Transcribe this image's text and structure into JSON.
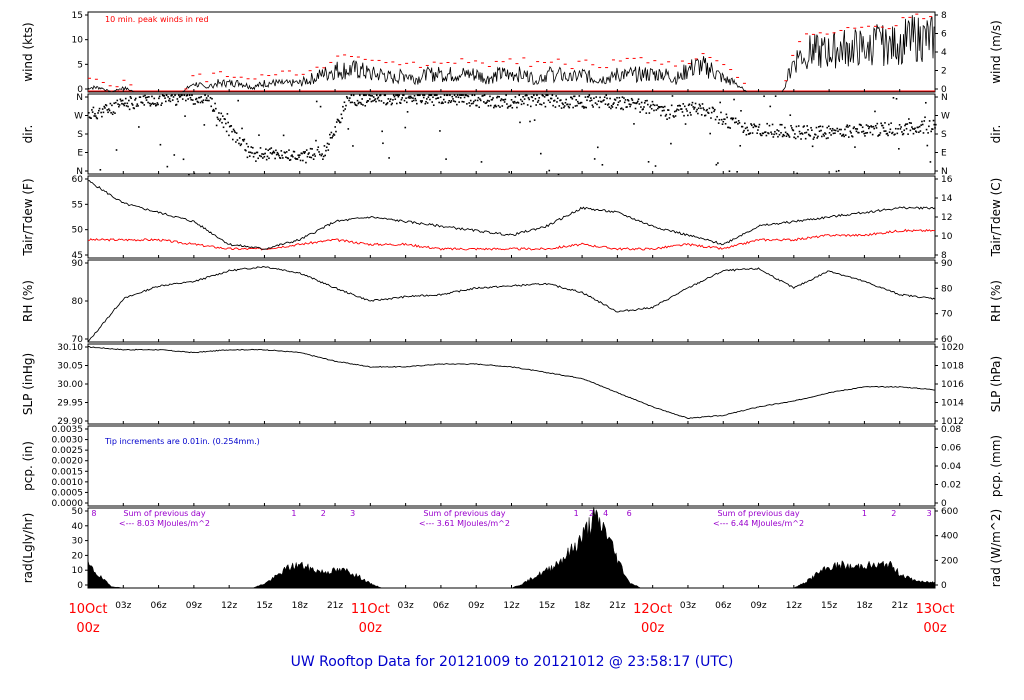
{
  "footer": "UW Rooftop Data for 20121009  to  20121012 @ 23:58:17  (UTC)",
  "colors": {
    "red": "#ff0000",
    "blue": "#0000cc",
    "purple": "#9900cc",
    "black": "#000000"
  },
  "chart_data": {
    "type": "line",
    "x_axis": {
      "start": "2012-10-10T00:00Z",
      "end": "2012-10-13T00:00Z",
      "hour_labels": [
        "03z",
        "06z",
        "09z",
        "12z",
        "15z",
        "18z",
        "21z",
        "03z",
        "06z",
        "09z",
        "12z",
        "15z",
        "18z",
        "21z",
        "03z",
        "06z",
        "09z",
        "12z",
        "15z",
        "18z",
        "21z"
      ],
      "date_labels": [
        {
          "date": "10Oct",
          "hour": "00z"
        },
        {
          "date": "11Oct",
          "hour": "00z"
        },
        {
          "date": "12Oct",
          "hour": "00z"
        },
        {
          "date": "13Oct",
          "hour": "00z"
        }
      ]
    },
    "panels": [
      {
        "id": "wind",
        "ylabel_left": "wind (kts)",
        "ylabel_right": "wind (m/s)",
        "ylim": [
          0,
          18
        ],
        "left_ticks": [
          "0",
          "5",
          "10",
          "15"
        ],
        "right_ticks": [
          "0",
          "2",
          "4",
          "6",
          "8"
        ],
        "annotation": "10 min. peak winds in red",
        "hours": [
          0,
          1,
          2,
          3,
          4,
          5,
          6,
          7,
          8,
          9,
          10,
          11,
          12,
          13,
          14,
          15,
          16,
          17,
          18,
          19,
          20,
          21,
          22,
          23,
          24,
          25,
          26,
          27,
          28,
          29,
          30,
          31,
          32,
          33,
          34,
          35,
          36,
          37,
          38,
          39,
          40,
          41,
          42,
          43,
          44,
          45,
          46,
          47,
          48,
          49,
          50,
          51,
          52,
          53,
          54,
          55,
          56,
          57,
          58,
          59,
          60,
          61,
          62,
          63,
          64,
          65,
          66,
          67,
          68,
          69,
          70,
          71,
          72
        ],
        "mean_kts": [
          1,
          1,
          0,
          1,
          0,
          0,
          0,
          0,
          0,
          2,
          1,
          2,
          2,
          2,
          1,
          2,
          2,
          2,
          2,
          3,
          4,
          5,
          5,
          5,
          4,
          4,
          3,
          4,
          3,
          4,
          4,
          4,
          4,
          4,
          3,
          4,
          4,
          4,
          3,
          4,
          4,
          3,
          4,
          3,
          3,
          4,
          4,
          4,
          4,
          4,
          3,
          5,
          6,
          5,
          3,
          2,
          0,
          0,
          0,
          0,
          7,
          9,
          9,
          9,
          10,
          10,
          10,
          11,
          10,
          11,
          12,
          12,
          12
        ],
        "peak_kts": [
          3,
          3,
          1,
          3,
          0,
          0,
          0,
          0,
          0,
          4,
          3,
          4,
          4,
          4,
          3,
          4,
          4,
          4,
          4,
          5,
          6,
          8,
          8,
          8,
          7,
          7,
          6,
          7,
          6,
          7,
          7,
          7,
          7,
          7,
          6,
          7,
          7,
          7,
          6,
          7,
          7,
          6,
          7,
          6,
          6,
          7,
          7,
          7,
          7,
          7,
          6,
          7,
          8,
          8,
          6,
          4,
          0,
          0,
          0,
          0,
          11,
          13,
          13,
          13,
          14,
          14,
          14,
          15,
          15,
          16,
          17,
          17,
          16
        ]
      },
      {
        "id": "dir",
        "ylabel_left": "dir.",
        "ylabel_right": "dir.",
        "ylim": [
          0,
          360
        ],
        "left_ticks": [
          "N",
          "E",
          "S",
          "W",
          "N"
        ],
        "right_ticks": [
          "N",
          "E",
          "S",
          "W",
          "N"
        ],
        "hours": [
          0,
          2,
          4,
          6,
          8,
          10,
          12,
          14,
          16,
          18,
          20,
          22,
          24,
          26,
          28,
          30,
          32,
          34,
          36,
          38,
          40,
          42,
          44,
          46,
          48,
          50,
          52,
          54,
          56,
          58,
          60,
          62,
          64,
          66,
          68,
          70,
          72
        ],
        "deg": [
          270,
          300,
          330,
          340,
          345,
          350,
          200,
          90,
          95,
          80,
          100,
          330,
          340,
          345,
          350,
          345,
          340,
          330,
          330,
          340,
          330,
          330,
          330,
          320,
          300,
          290,
          300,
          250,
          200,
          200,
          190,
          190,
          195,
          200,
          205,
          210,
          215
        ]
      },
      {
        "id": "temp",
        "ylabel_left": "Tair/Tdew (F)",
        "ylabel_right": "Tair/Tdew (C)",
        "ylim": [
          45,
          63
        ],
        "left_ticks": [
          "45",
          "50",
          "55",
          "60"
        ],
        "right_ticks": [
          "8",
          "10",
          "12",
          "14",
          "16"
        ],
        "hours": [
          0,
          3,
          6,
          9,
          12,
          15,
          18,
          21,
          24,
          27,
          30,
          33,
          36,
          39,
          42,
          45,
          48,
          51,
          54,
          57,
          60,
          63,
          66,
          69,
          72
        ],
        "tair_f": [
          62,
          57,
          55,
          53,
          48,
          47,
          49,
          53,
          54,
          53,
          52,
          51,
          50,
          52,
          56,
          55,
          52,
          50,
          48,
          52,
          53,
          54,
          55,
          56,
          56
        ],
        "tdew_f": [
          49,
          49,
          49,
          48,
          47,
          47,
          48,
          49,
          48,
          48,
          47,
          47,
          47,
          47,
          48,
          47,
          47,
          48,
          47,
          49,
          49,
          50,
          50,
          51,
          51
        ]
      },
      {
        "id": "rh",
        "ylabel_left": "RH (%)",
        "ylabel_right": "RH (%)",
        "ylim": [
          60,
          98
        ],
        "left_ticks": [
          "70",
          "80",
          "90"
        ],
        "right_ticks": [
          "60",
          "70",
          "80",
          "90"
        ],
        "hours": [
          0,
          3,
          6,
          9,
          12,
          15,
          18,
          21,
          24,
          27,
          30,
          33,
          36,
          39,
          42,
          45,
          48,
          51,
          54,
          57,
          60,
          63,
          66,
          69,
          72
        ],
        "rh_pct": [
          60,
          80,
          86,
          88,
          93,
          95,
          92,
          85,
          79,
          81,
          82,
          85,
          86,
          87,
          83,
          74,
          76,
          85,
          93,
          94,
          85,
          93,
          88,
          82,
          80
        ]
      },
      {
        "id": "slp",
        "ylabel_left": "SLP (inHg)",
        "ylabel_right": "SLP (hPa)",
        "ylim": [
          29.85,
          30.13
        ],
        "left_ticks": [
          "29.90",
          "29.95",
          "30.00",
          "30.05",
          "30.10"
        ],
        "right_ticks": [
          "1012",
          "1014",
          "1016",
          "1018",
          "1020"
        ],
        "hours": [
          0,
          3,
          6,
          9,
          12,
          15,
          18,
          21,
          24,
          27,
          30,
          33,
          36,
          39,
          42,
          45,
          48,
          51,
          54,
          57,
          60,
          63,
          66,
          69,
          72
        ],
        "slp_inhg": [
          30.12,
          30.11,
          30.11,
          30.1,
          30.11,
          30.11,
          30.1,
          30.07,
          30.05,
          30.05,
          30.06,
          30.06,
          30.05,
          30.03,
          30.01,
          29.96,
          29.91,
          29.87,
          29.88,
          29.91,
          29.93,
          29.96,
          29.98,
          29.98,
          29.97
        ]
      },
      {
        "id": "pcp",
        "ylabel_left": "pcp. (in)",
        "ylabel_right": "pcp. (mm)",
        "ylim": [
          0,
          0.0035
        ],
        "left_ticks": [
          "0.0000",
          "0.0005",
          "0.0010",
          "0.0015",
          "0.0020",
          "0.0025",
          "0.0030",
          "0.0035"
        ],
        "right_ticks": [
          "0",
          "0.02",
          "0.04",
          "0.06",
          "0.08"
        ],
        "annotation": "Tip increments are 0.01in. (0.254mm.)",
        "hours": [
          0,
          72
        ],
        "pcp_in": [
          0,
          0
        ]
      },
      {
        "id": "rad",
        "ylabel_left": "rad(Lgly/hr)",
        "ylabel_right": "rad (W/m^2)",
        "ylim": [
          0,
          55
        ],
        "left_ticks": [
          "0",
          "10",
          "20",
          "30",
          "40",
          "50"
        ],
        "right_ticks": [
          "0",
          "200",
          "400",
          "600"
        ],
        "hours": [
          0,
          1,
          2,
          3,
          14,
          15,
          16,
          17,
          18,
          19,
          20,
          21,
          22,
          23,
          24,
          25,
          36,
          37,
          38,
          39,
          40,
          41,
          42,
          43,
          44,
          45,
          46,
          47,
          48,
          49,
          60,
          61,
          62,
          63,
          64,
          65,
          66,
          67,
          68,
          69,
          70,
          71,
          72
        ],
        "rad_lgly": [
          16,
          8,
          1,
          0,
          0,
          3,
          8,
          14,
          16,
          13,
          11,
          12,
          12,
          8,
          3,
          0,
          0,
          3,
          8,
          12,
          18,
          25,
          35,
          48,
          40,
          20,
          4,
          0,
          0,
          0,
          0,
          4,
          10,
          14,
          16,
          14,
          16,
          15,
          17,
          10,
          6,
          4,
          4
        ],
        "top_labels": [
          {
            "hour": 0.5,
            "text": "8"
          },
          {
            "hour": 17.5,
            "text": "1"
          },
          {
            "hour": 20,
            "text": "2"
          },
          {
            "hour": 22.5,
            "text": "3"
          },
          {
            "hour": 41.5,
            "text": "1"
          },
          {
            "hour": 42.8,
            "text": "2"
          },
          {
            "hour": 44,
            "text": "4"
          },
          {
            "hour": 46,
            "text": "6"
          },
          {
            "hour": 66,
            "text": "1"
          },
          {
            "hour": 68.5,
            "text": "2"
          },
          {
            "hour": 71.5,
            "text": "3"
          }
        ],
        "day_sums": [
          {
            "hour": 6.5,
            "line1": "Sum of previous day",
            "line2": "<--- 8.03 MJoules/m^2"
          },
          {
            "hour": 32,
            "line1": "Sum of previous day",
            "line2": "<--- 3.61 MJoules/m^2"
          },
          {
            "hour": 57,
            "line1": "Sum of previous day",
            "line2": "<--- 6.44 MJoules/m^2"
          }
        ]
      }
    ]
  }
}
